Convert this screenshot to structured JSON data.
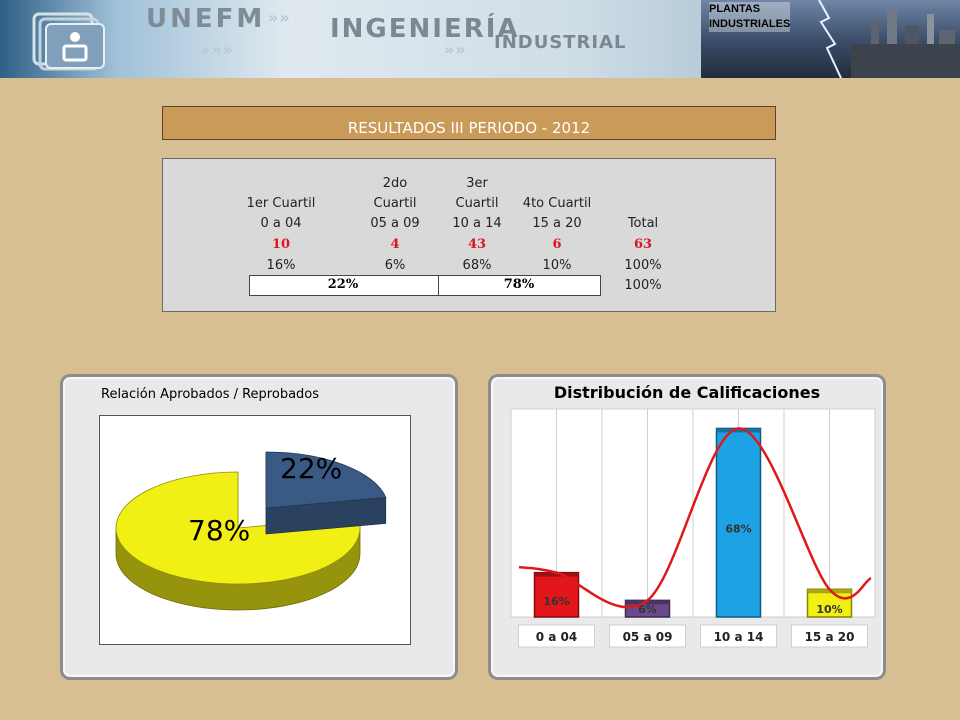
{
  "header": {
    "brand": "UNEFM",
    "title_line1": "INGENIERÍA",
    "title_line2": "INDUSTRIAL",
    "plants_label_1": "PLANTAS",
    "plants_label_2": "INDUSTRIALES"
  },
  "results_title": "RESULTADOS  III PERIODO - 2012",
  "table": {
    "headers": [
      "1er Cuartil",
      "2do Cuartil",
      "3er Cuartil",
      "4to Cuartil"
    ],
    "header_top": [
      "",
      "2do",
      "3er",
      ""
    ],
    "header_bottom": [
      "1er Cuartil",
      "Cuartil",
      "Cuartil",
      "4to Cuartil"
    ],
    "ranges": [
      "0 a 04",
      "05 a 09",
      "10 a 14",
      "15 a 20",
      "Total"
    ],
    "counts": [
      "10",
      "4",
      "43",
      "6",
      "63"
    ],
    "percents": [
      "16%",
      "6%",
      "68%",
      "10%",
      "100%"
    ],
    "summary": [
      "22%",
      "78%",
      "100%"
    ]
  },
  "chart_data": [
    {
      "type": "pie",
      "title": "Relación Aprobados / Reprobados",
      "labels": [
        "22%",
        "78%"
      ],
      "values": [
        22,
        78
      ],
      "colors": [
        "#3a5a86",
        "#f2ef14"
      ],
      "style": "3d-exploded"
    },
    {
      "type": "bar",
      "title": "Distribución de Calificaciones",
      "categories": [
        "0 a 04",
        "05 a 09",
        "10 a 14",
        "15 a 20"
      ],
      "values": [
        16,
        6,
        68,
        10
      ],
      "data_labels": [
        "16%",
        "6%",
        "68%",
        "10%"
      ],
      "colors": [
        "#e3161c",
        "#6b4a8c",
        "#1ea2e6",
        "#f2ef14"
      ],
      "ylim": [
        0,
        75
      ],
      "grid": true,
      "overlay": "smooth red trend curve"
    }
  ]
}
